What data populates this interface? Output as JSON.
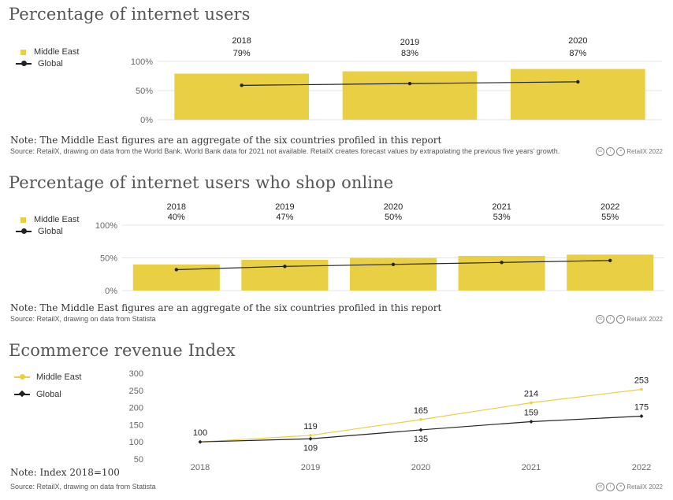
{
  "colors": {
    "middle_east": "#e8cf44",
    "global": "#222222",
    "grid": "#e4e4e4",
    "tick": "#666666"
  },
  "chart1": {
    "title": "Percentage of internet users",
    "legend": {
      "series1": "Middle East",
      "series2": "Global"
    },
    "note": "Note: The Middle East figures are an aggregate of the six countries profiled in this report",
    "source": "Source: RetailX, drawing on data from the World Bank. World Bank data for 2021 not available. RetailX creates forecast values by extrapolating the previous five years' growth.",
    "credit": "RetailX 2022"
  },
  "chart2": {
    "title": "Percentage of internet users who shop online",
    "legend": {
      "series1": "Middle East",
      "series2": "Global"
    },
    "note": "Note: The Middle East figures are an aggregate of the six countries profiled in this report",
    "source": "Source: RetailX, drawing on data from Statista",
    "credit": "RetailX 2022"
  },
  "chart3": {
    "title": "Ecommerce revenue Index",
    "legend": {
      "series1": "Middle East",
      "series2": "Global"
    },
    "note": "Note: Index 2018=100",
    "source": "Source: RetailX, drawing on data from Statista",
    "credit": "RetailX 2022"
  },
  "chart_data": [
    {
      "type": "bar",
      "title": "Percentage of internet users",
      "categories": [
        "2018",
        "2019",
        "2020"
      ],
      "series": [
        {
          "name": "Middle East",
          "kind": "bar",
          "values": [
            79,
            83,
            87
          ],
          "labels": [
            "79%",
            "83%",
            "87%"
          ]
        },
        {
          "name": "Global",
          "kind": "line",
          "values": [
            59,
            62,
            65
          ]
        }
      ],
      "yticks": [
        0,
        50,
        100
      ],
      "ytick_labels": [
        "0%",
        "50%",
        "100%"
      ],
      "ylim": [
        0,
        100
      ]
    },
    {
      "type": "bar",
      "title": "Percentage of internet users who shop online",
      "categories": [
        "2018",
        "2019",
        "2020",
        "2021",
        "2022"
      ],
      "series": [
        {
          "name": "Middle East",
          "kind": "bar",
          "values": [
            40,
            47,
            50,
            53,
            55
          ],
          "labels": [
            "40%",
            "47%",
            "50%",
            "53%",
            "55%"
          ]
        },
        {
          "name": "Global",
          "kind": "line",
          "values": [
            32,
            37,
            40,
            43,
            46
          ]
        }
      ],
      "yticks": [
        0,
        50,
        100
      ],
      "ytick_labels": [
        "0%",
        "50%",
        "100%"
      ],
      "ylim": [
        0,
        100
      ]
    },
    {
      "type": "line",
      "title": "Ecommerce revenue Index",
      "categories": [
        "2018",
        "2019",
        "2020",
        "2021",
        "2022"
      ],
      "series": [
        {
          "name": "Middle East",
          "values": [
            100,
            119,
            165,
            214,
            253
          ]
        },
        {
          "name": "Global",
          "values": [
            100,
            109,
            135,
            159,
            175
          ]
        }
      ],
      "value_labels": [
        {
          "text": "100",
          "series": 0,
          "index": 0,
          "pos": "above"
        },
        {
          "text": "119",
          "series": 0,
          "index": 1,
          "pos": "above"
        },
        {
          "text": "165",
          "series": 0,
          "index": 2,
          "pos": "above"
        },
        {
          "text": "214",
          "series": 0,
          "index": 3,
          "pos": "above"
        },
        {
          "text": "253",
          "series": 0,
          "index": 4,
          "pos": "above"
        },
        {
          "text": "109",
          "series": 1,
          "index": 1,
          "pos": "below"
        },
        {
          "text": "135",
          "series": 1,
          "index": 2,
          "pos": "below"
        },
        {
          "text": "159",
          "series": 1,
          "index": 3,
          "pos": "above"
        },
        {
          "text": "175",
          "series": 1,
          "index": 4,
          "pos": "above"
        }
      ],
      "yticks": [
        50,
        100,
        150,
        200,
        250,
        300
      ],
      "ylim": [
        50,
        300
      ]
    }
  ]
}
